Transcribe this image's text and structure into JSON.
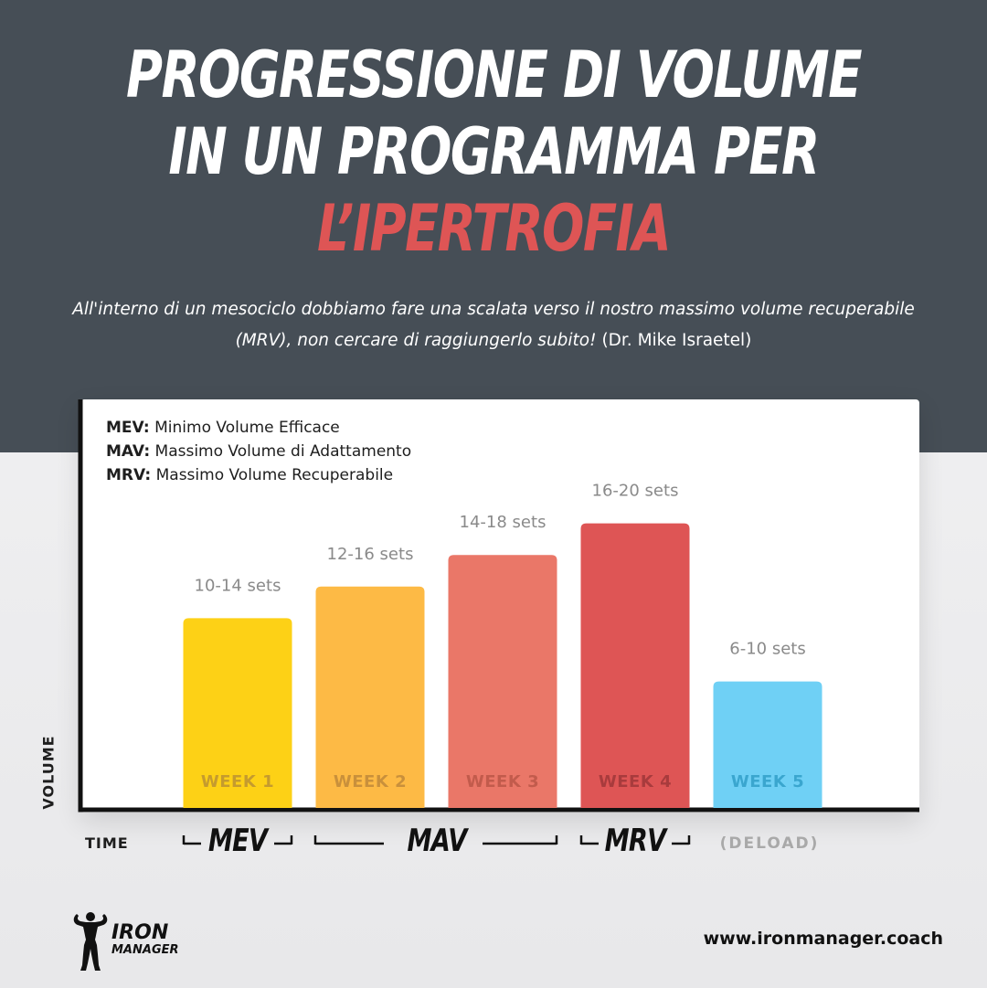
{
  "header": {
    "title_line1": "PROGRESSIONE DI VOLUME",
    "title_line2": "IN UN PROGRAMMA PER",
    "title_line3": "L’IPERTROFIA",
    "accent_color": "#de5555",
    "background_color": "#464e56"
  },
  "subtitle": {
    "quote": "All'interno di un mesociclo dobbiamo fare una scalata verso il nostro massimo volume recuperabile (MRV), non cercare di raggiungerlo subito!",
    "author": "(Dr. Mike Israetel)"
  },
  "legend": [
    {
      "key": "MEV:",
      "text": "Minimo Volume Efficace"
    },
    {
      "key": "MAV:",
      "text": "Massimo Volume di Adattamento"
    },
    {
      "key": "MRV:",
      "text": "Massimo Volume Recuperabile"
    }
  ],
  "chart_data": {
    "type": "bar",
    "title": "",
    "xlabel": "TIME",
    "ylabel": "VOLUME",
    "categories": [
      "WEEK 1",
      "WEEK 2",
      "WEEK 3",
      "WEEK 4",
      "WEEK 5"
    ],
    "value_labels": [
      "10-14 sets",
      "12-16 sets",
      "14-18 sets",
      "16-20 sets",
      "6-10 sets"
    ],
    "ranges": [
      [
        10,
        14
      ],
      [
        12,
        16
      ],
      [
        14,
        18
      ],
      [
        16,
        20
      ],
      [
        6,
        10
      ]
    ],
    "values": [
      12,
      14,
      16,
      18,
      8
    ],
    "ylim": [
      0,
      20
    ],
    "colors": [
      "#fdd116",
      "#fdba45",
      "#ea7768",
      "#de5555",
      "#6fd0f5"
    ],
    "week_label_colors": [
      "#c59b2e",
      "#c9903b",
      "#c25b4c",
      "#a83b3d",
      "#3aa6cf"
    ],
    "grid": false,
    "phases": [
      "MEV",
      "MAV",
      "MRV"
    ],
    "deload_label": "(DELOAD)"
  },
  "footer": {
    "logo_word1": "IRON",
    "logo_word2": "MANAGER",
    "website": "www.ironmanager.coach"
  }
}
